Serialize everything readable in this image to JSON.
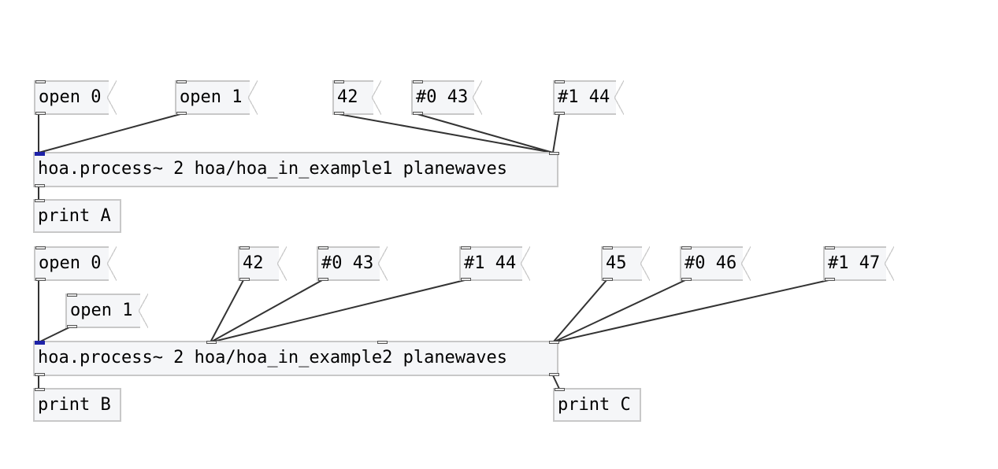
{
  "patch": {
    "row1": {
      "open0": "open 0",
      "open1": "open 1",
      "n42": "42",
      "h0_43": "#0 43",
      "h1_44": "#1 44",
      "process": "hoa.process~ 2 hoa/hoa_in_example1 planewaves",
      "printA": "print A"
    },
    "row2": {
      "open0": "open 0",
      "open1": "open 1",
      "n42": "42",
      "h0_43": "#0 43",
      "h1_44": "#1 44",
      "n45": "45",
      "h0_46": "#0 46",
      "h1_47": "#1 47",
      "process": "hoa.process~ 2 hoa/hoa_in_example2 planewaves",
      "printB": "print B",
      "printC": "print C"
    }
  },
  "colors": {
    "wire": "#333333",
    "box_border": "#c8c8c8",
    "box_fill": "#f5f6f8",
    "signal_inlet": "#1d22a8"
  }
}
